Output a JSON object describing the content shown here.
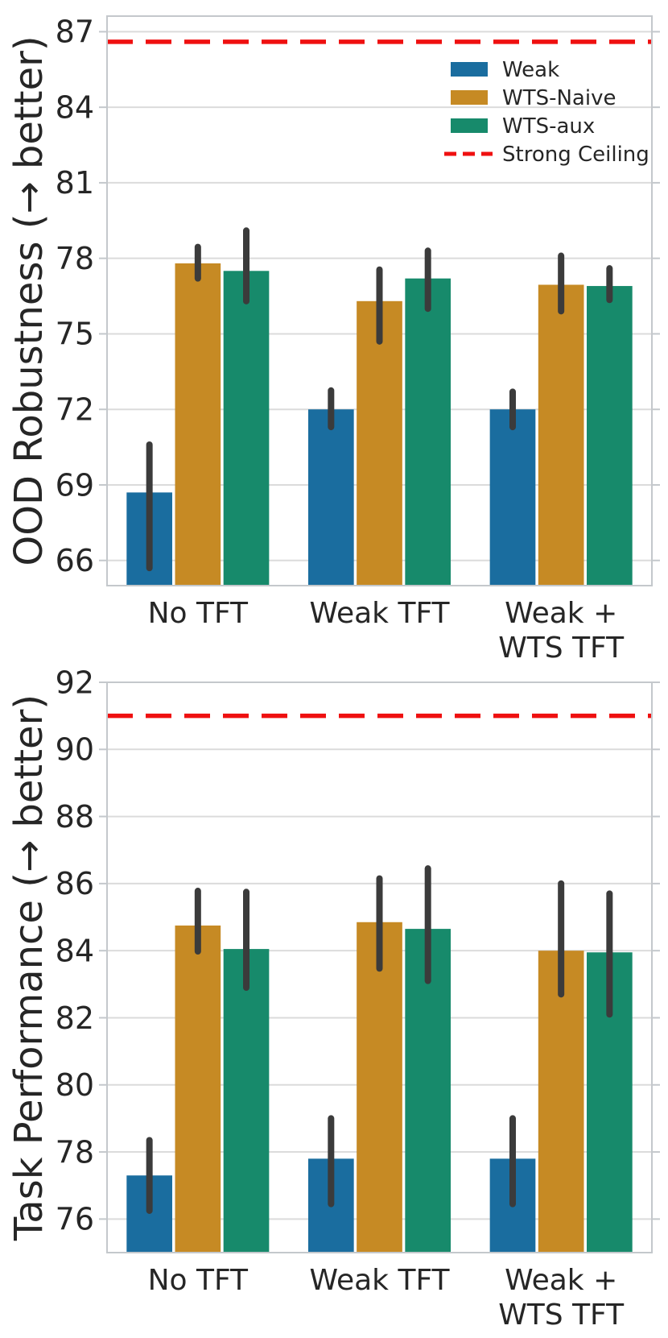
{
  "figure": {
    "description": "Two stacked grouped bar charts comparing Weak, WTS-Naive and WTS-aux models against a Strong Ceiling",
    "text_color": "#262626",
    "grid_color": "#DBDBDB",
    "border_color": "#C4C8CC",
    "errorbar_color": "#3B3B3B"
  },
  "legend": {
    "items": [
      {
        "label": "Weak",
        "color": "#1A6D9F",
        "type": "patch"
      },
      {
        "label": "WTS-Naive",
        "color": "#C68A24",
        "type": "patch"
      },
      {
        "label": "WTS-aux",
        "color": "#178A6B",
        "type": "patch"
      },
      {
        "label": "Strong Ceiling",
        "color": "#EF1010",
        "type": "dashed-line"
      }
    ]
  },
  "chart_data": [
    {
      "type": "bar",
      "title": "",
      "xlabel": "",
      "ylabel": "OOD Robustness (→ better)",
      "categories": [
        "No TFT",
        "Weak TFT",
        "Weak +\nWTS TFT"
      ],
      "series": [
        {
          "name": "Weak",
          "color": "#1A6D9F",
          "values": [
            68.7,
            72.0,
            72.0
          ],
          "ci_low": [
            65.7,
            71.3,
            71.3
          ],
          "ci_high": [
            70.6,
            72.75,
            72.7
          ]
        },
        {
          "name": "WTS-Naive",
          "color": "#C68A24",
          "values": [
            77.8,
            76.3,
            76.95
          ],
          "ci_low": [
            77.2,
            74.7,
            75.9
          ],
          "ci_high": [
            78.45,
            77.55,
            78.1
          ]
        },
        {
          "name": "WTS-aux",
          "color": "#178A6B",
          "values": [
            77.5,
            77.2,
            76.9
          ],
          "ci_low": [
            76.3,
            76.0,
            76.35
          ],
          "ci_high": [
            79.1,
            78.3,
            77.6
          ]
        }
      ],
      "ceiling": {
        "label": "Strong Ceiling",
        "value": 86.6,
        "color": "#EF1010"
      },
      "ylim": [
        65.0,
        87.62
      ],
      "yticks": [
        66,
        69,
        72,
        75,
        78,
        81,
        84,
        87
      ],
      "grid": true,
      "legend_position": "upper right",
      "show_legend": true
    },
    {
      "type": "bar",
      "title": "",
      "xlabel": "",
      "ylabel": "Task Performance (→ better)",
      "categories": [
        "No TFT",
        "Weak TFT",
        "Weak +\nWTS TFT"
      ],
      "series": [
        {
          "name": "Weak",
          "color": "#1A6D9F",
          "values": [
            77.3,
            77.8,
            77.8
          ],
          "ci_low": [
            76.25,
            76.45,
            76.45
          ],
          "ci_high": [
            78.35,
            79.0,
            79.0
          ]
        },
        {
          "name": "WTS-Naive",
          "color": "#C68A24",
          "values": [
            84.75,
            84.85,
            84.0
          ],
          "ci_low": [
            83.98,
            83.47,
            82.7
          ],
          "ci_high": [
            85.78,
            86.15,
            86.0
          ]
        },
        {
          "name": "WTS-aux",
          "color": "#178A6B",
          "values": [
            84.05,
            84.65,
            83.95
          ],
          "ci_low": [
            82.9,
            83.1,
            82.1
          ],
          "ci_high": [
            85.75,
            86.45,
            85.7
          ]
        }
      ],
      "ceiling": {
        "label": "Strong Ceiling",
        "value": 91.0,
        "color": "#EF1010"
      },
      "ylim": [
        75.0,
        92.0
      ],
      "yticks": [
        76,
        78,
        80,
        82,
        84,
        86,
        88,
        90,
        92
      ],
      "grid": true,
      "legend_position": "none",
      "show_legend": false
    }
  ]
}
